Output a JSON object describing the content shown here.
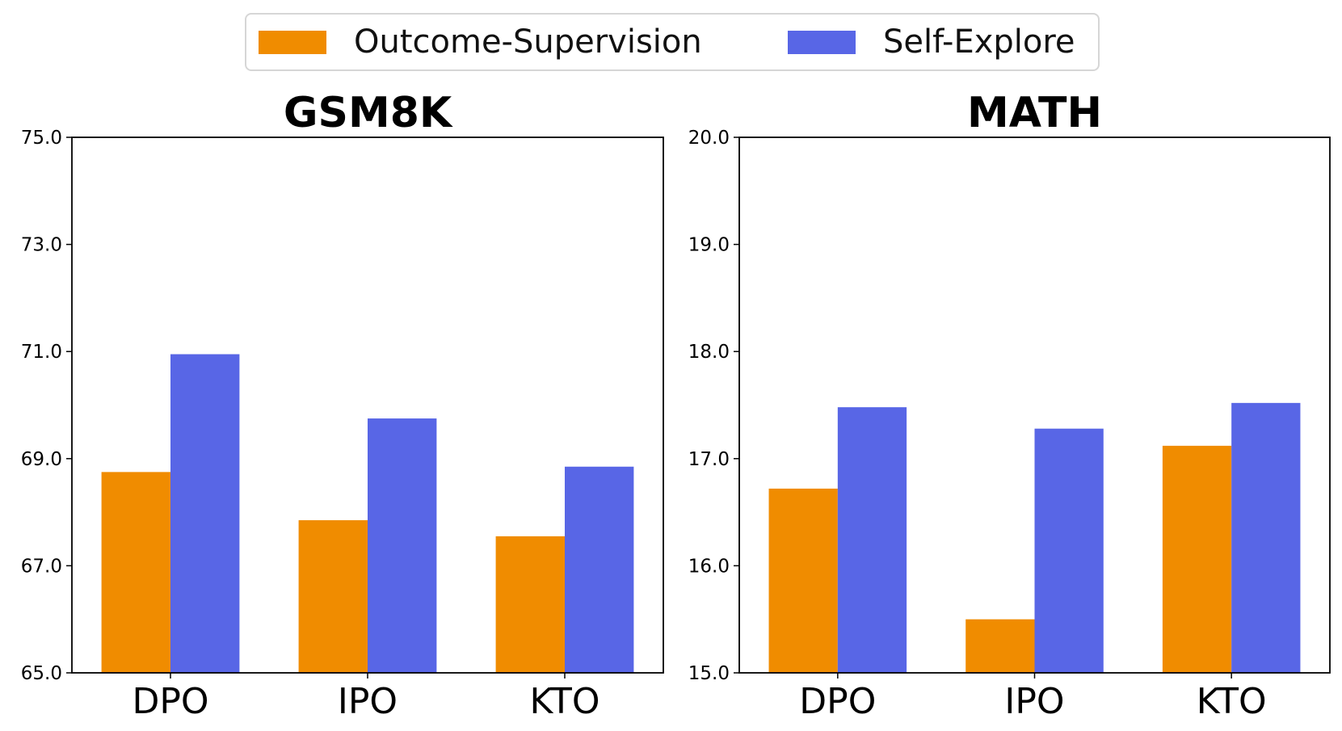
{
  "legend": {
    "items": [
      {
        "label": "Outcome-Supervision",
        "color": "#F08C00"
      },
      {
        "label": "Self-Explore",
        "color": "#5866E6"
      }
    ]
  },
  "chart_data": [
    {
      "type": "bar",
      "title": "GSM8K",
      "categories": [
        "DPO",
        "IPO",
        "KTO"
      ],
      "series": [
        {
          "name": "Outcome-Supervision",
          "values": [
            68.75,
            67.85,
            67.55
          ]
        },
        {
          "name": "Self-Explore",
          "values": [
            70.95,
            69.75,
            68.85
          ]
        }
      ],
      "ylim": [
        65.0,
        75.0
      ],
      "yticks": [
        "65.0",
        "67.0",
        "69.0",
        "71.0",
        "73.0",
        "75.0"
      ],
      "xlabel": "",
      "ylabel": "",
      "grid": false,
      "legend": "top-center"
    },
    {
      "type": "bar",
      "title": "MATH",
      "categories": [
        "DPO",
        "IPO",
        "KTO"
      ],
      "series": [
        {
          "name": "Outcome-Supervision",
          "values": [
            16.72,
            15.5,
            17.12
          ]
        },
        {
          "name": "Self-Explore",
          "values": [
            17.48,
            17.28,
            17.52
          ]
        }
      ],
      "ylim": [
        15.0,
        20.0
      ],
      "yticks": [
        "15.0",
        "16.0",
        "17.0",
        "18.0",
        "19.0",
        "20.0"
      ],
      "xlabel": "",
      "ylabel": "",
      "grid": false,
      "legend": "top-center"
    }
  ]
}
